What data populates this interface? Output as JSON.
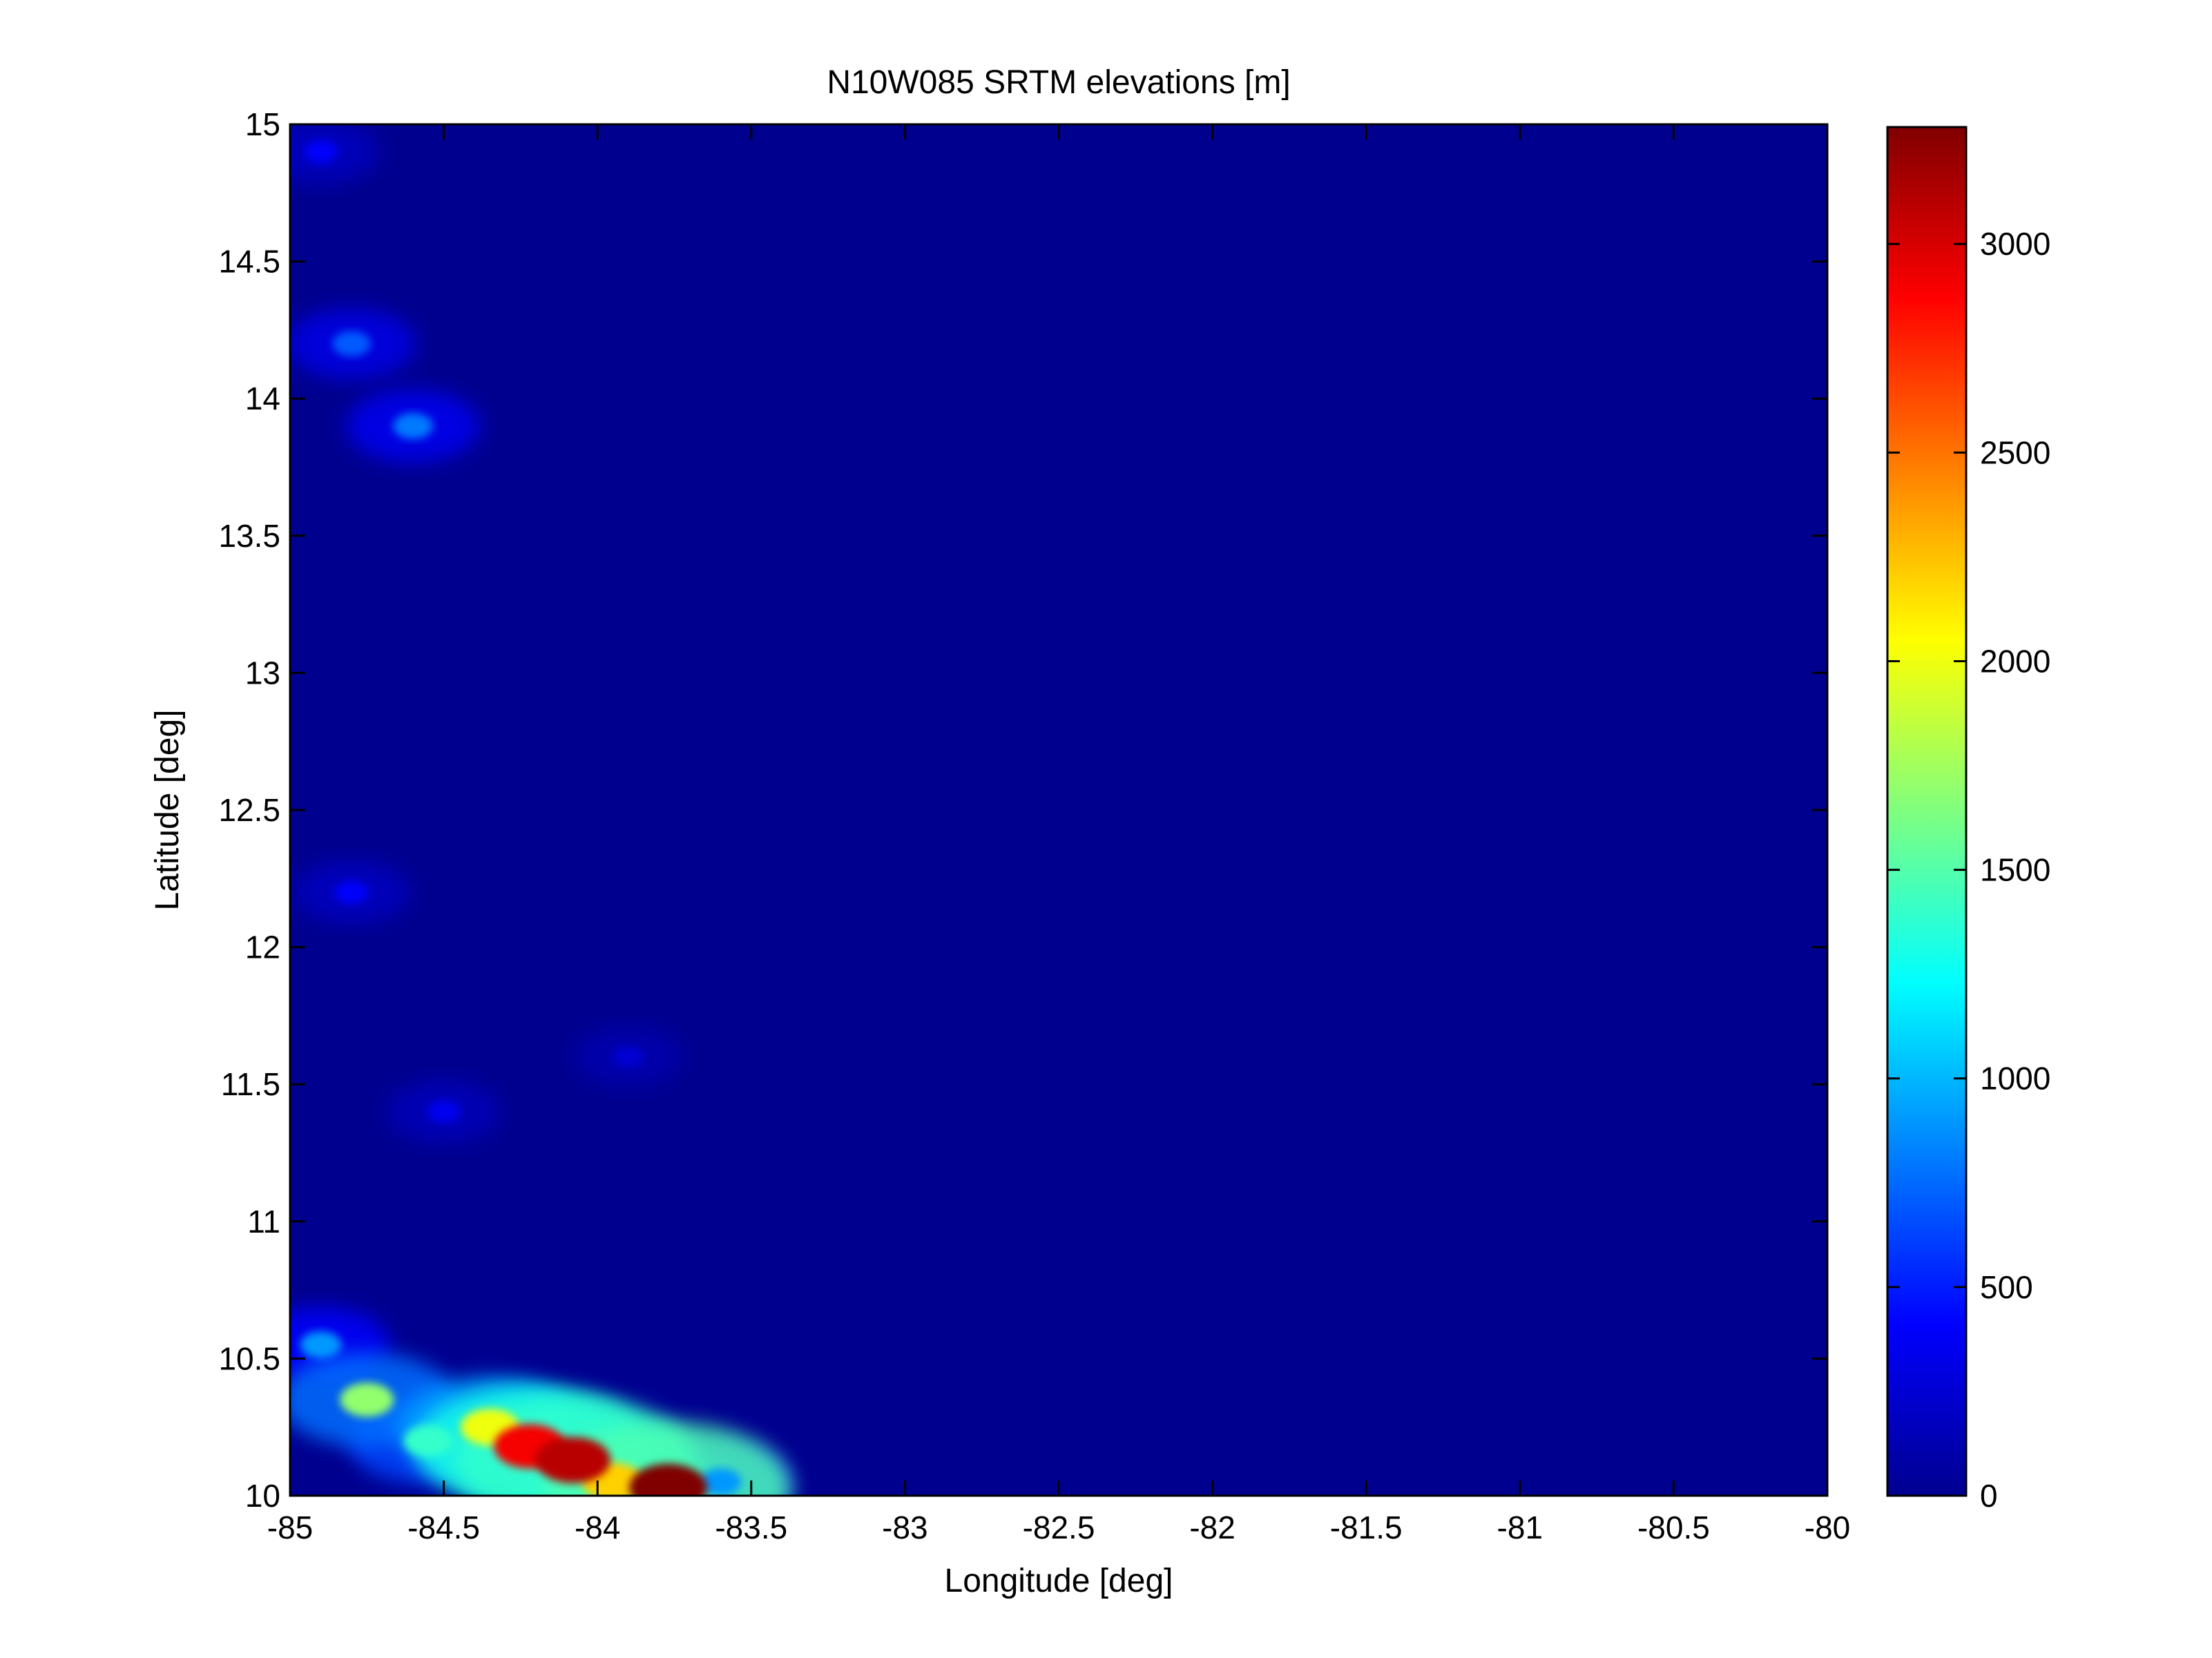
{
  "chart_data": {
    "type": "heatmap",
    "title": "N10W085 SRTM elevations [m]",
    "xlabel": "Longitude [deg]",
    "ylabel": "Latitude [deg]",
    "xlim": [
      -85,
      -80
    ],
    "ylim": [
      10,
      15
    ],
    "x_ticks": [
      -85,
      -84.5,
      -84,
      -83.5,
      -83,
      -82.5,
      -82,
      -81.5,
      -81,
      -80.5,
      -80
    ],
    "x_tick_labels": [
      "-85",
      "-84.5",
      "-84",
      "-83.5",
      "-83",
      "-82.5",
      "-82",
      "-81.5",
      "-81",
      "-80.5",
      "-80"
    ],
    "y_ticks": [
      10,
      10.5,
      11,
      11.5,
      12,
      12.5,
      13,
      13.5,
      14,
      14.5,
      15
    ],
    "y_tick_labels": [
      "10",
      "10.5",
      "11",
      "11.5",
      "12",
      "12.5",
      "13",
      "13.5",
      "14",
      "14.5",
      "15"
    ],
    "colormap": "jet",
    "colorbar": {
      "range": [
        0,
        3280
      ],
      "ticks": [
        0,
        500,
        1000,
        1500,
        2000,
        2500,
        3000
      ],
      "tick_labels": [
        "0",
        "500",
        "1000",
        "1500",
        "2000",
        "2500",
        "3000"
      ]
    },
    "grid": false,
    "background_value": 0,
    "background_color": "#00008f",
    "elevation_features": [
      {
        "lon": -84.9,
        "lat": 10.55,
        "elevation": 900
      },
      {
        "lon": -84.75,
        "lat": 10.35,
        "elevation": 1700
      },
      {
        "lon": -84.55,
        "lat": 10.2,
        "elevation": 1400
      },
      {
        "lon": -84.35,
        "lat": 10.25,
        "elevation": 2000
      },
      {
        "lon": -84.22,
        "lat": 10.18,
        "elevation": 2900
      },
      {
        "lon": -84.08,
        "lat": 10.13,
        "elevation": 3100
      },
      {
        "lon": -83.95,
        "lat": 10.05,
        "elevation": 2200
      },
      {
        "lon": -83.77,
        "lat": 10.03,
        "elevation": 3280
      },
      {
        "lon": -83.6,
        "lat": 10.05,
        "elevation": 900
      },
      {
        "lon": -84.8,
        "lat": 14.2,
        "elevation": 700
      },
      {
        "lon": -84.6,
        "lat": 13.9,
        "elevation": 800
      },
      {
        "lon": -84.9,
        "lat": 14.9,
        "elevation": 400
      },
      {
        "lon": -84.5,
        "lat": 11.4,
        "elevation": 350
      },
      {
        "lon": -84.8,
        "lat": 12.2,
        "elevation": 400
      },
      {
        "lon": -83.9,
        "lat": 11.6,
        "elevation": 250
      }
    ]
  }
}
